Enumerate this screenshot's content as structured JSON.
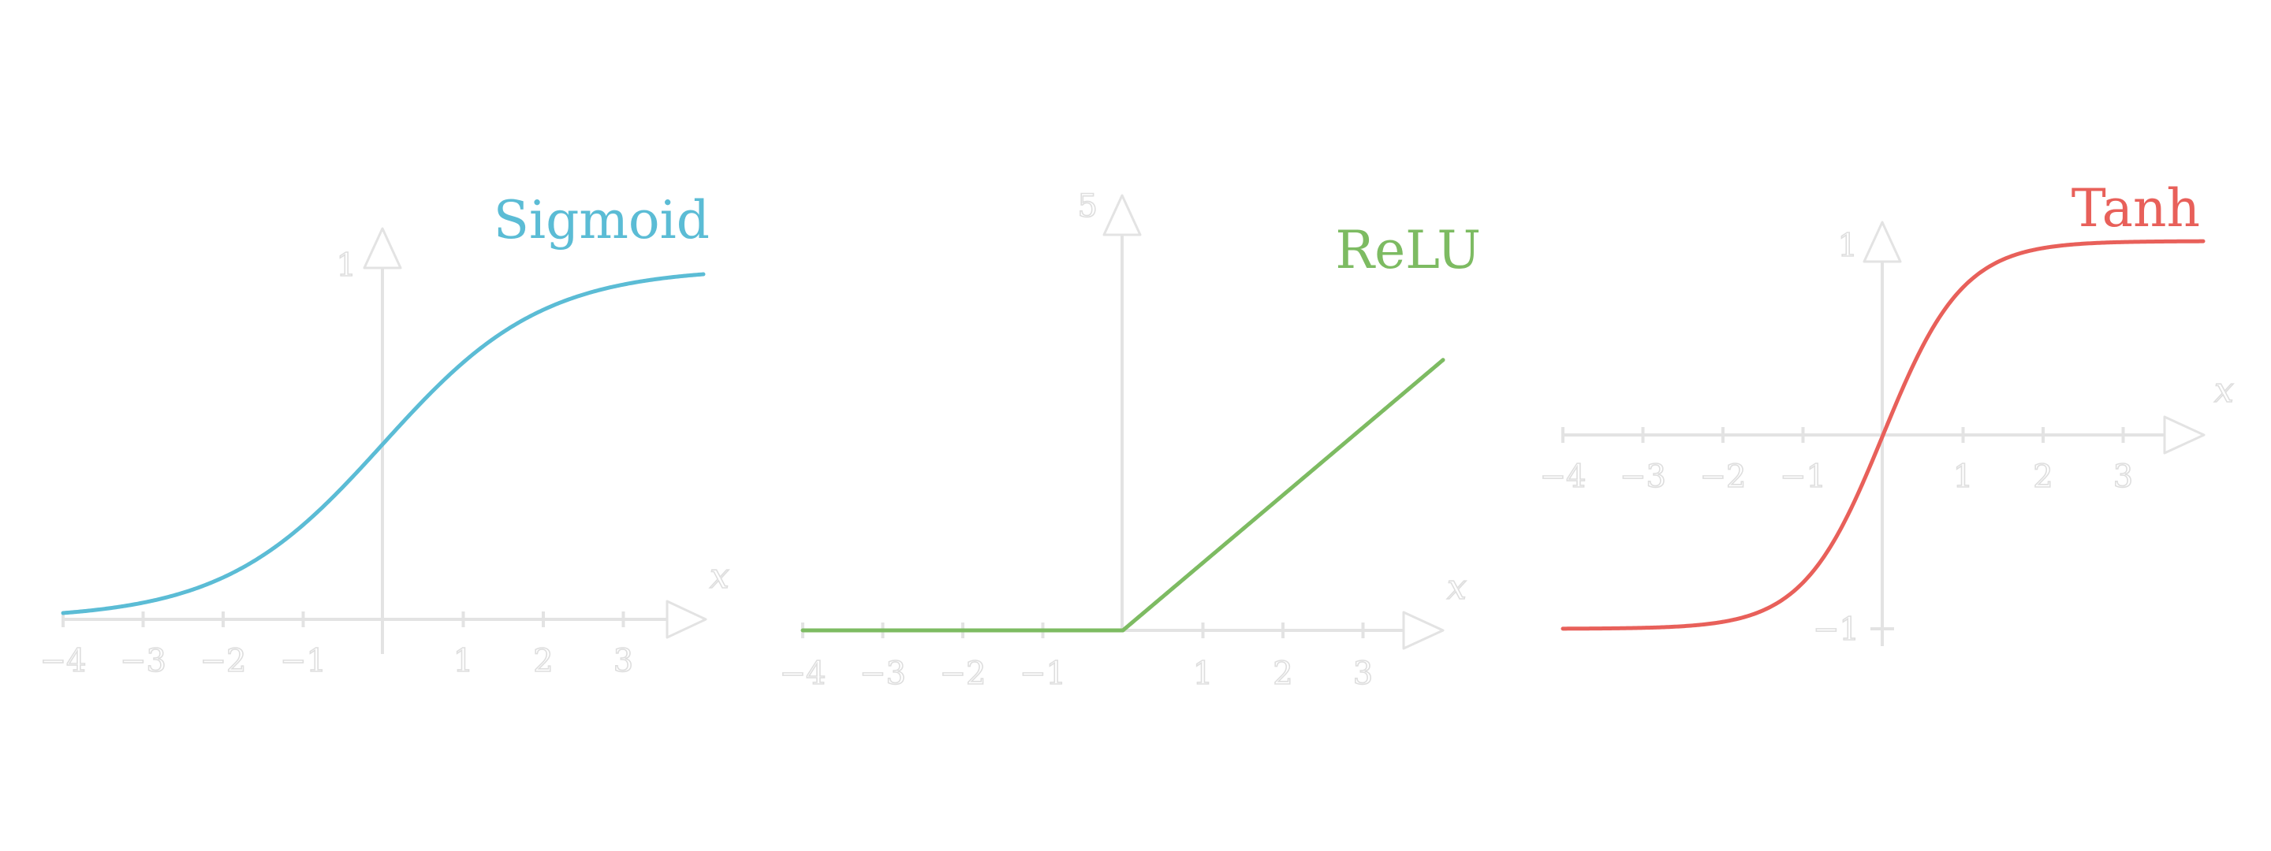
{
  "chart_data": [
    {
      "type": "line",
      "series": [
        {
          "name": "Sigmoid",
          "color": "#5bbcd5"
        }
      ],
      "function": "sigmoid",
      "xlabel": "x",
      "xlim": [
        -4,
        4
      ],
      "ylim": [
        0,
        1
      ],
      "x_ticks": [
        "−4",
        "−3",
        "−2",
        "−1",
        "1",
        "2",
        "3"
      ],
      "y_ticks": [
        "1"
      ],
      "x": [
        -4,
        -3,
        -2,
        -1,
        0,
        1,
        2,
        3,
        4
      ],
      "y": [
        0.018,
        0.047,
        0.119,
        0.269,
        0.5,
        0.731,
        0.881,
        0.953,
        0.982
      ],
      "grid": false
    },
    {
      "type": "line",
      "series": [
        {
          "name": "ReLU",
          "color": "#7dbb62"
        }
      ],
      "function": "relu",
      "xlabel": "x",
      "xlim": [
        -4,
        4
      ],
      "ylim": [
        0,
        5
      ],
      "x_ticks": [
        "−4",
        "−3",
        "−2",
        "−1",
        "1",
        "2",
        "3"
      ],
      "y_ticks": [
        "5"
      ],
      "x": [
        -4,
        -3,
        -2,
        -1,
        0,
        1,
        2,
        3,
        4
      ],
      "y": [
        0,
        0,
        0,
        0,
        0,
        1,
        2,
        3,
        4
      ],
      "grid": false
    },
    {
      "type": "line",
      "series": [
        {
          "name": "Tanh",
          "color": "#e8605a"
        }
      ],
      "function": "tanh",
      "xlabel": "x",
      "xlim": [
        -4,
        4
      ],
      "ylim": [
        -1,
        1
      ],
      "x_ticks": [
        "−4",
        "−3",
        "−2",
        "−1",
        "1",
        "2",
        "3"
      ],
      "y_ticks": [
        "1",
        "−1"
      ],
      "x": [
        -4,
        -3,
        -2,
        -1,
        0,
        1,
        2,
        3,
        4
      ],
      "y": [
        -0.999,
        -0.995,
        -0.964,
        -0.762,
        0,
        0.762,
        0.964,
        0.995,
        0.999
      ],
      "grid": false
    }
  ]
}
